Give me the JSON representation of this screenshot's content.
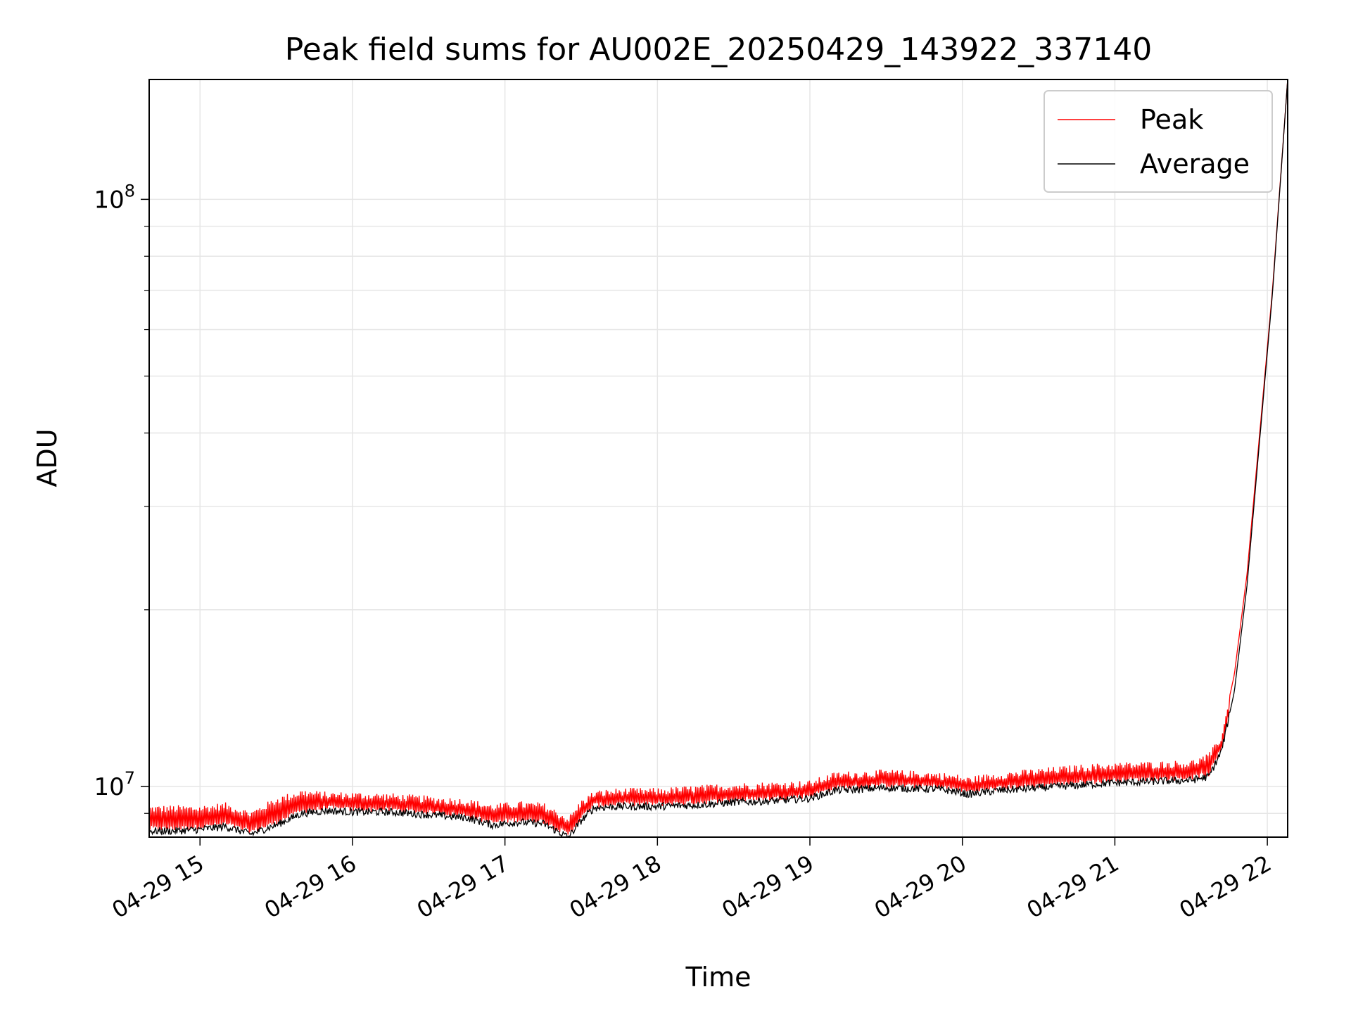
{
  "chart_data": {
    "type": "line",
    "title": "Peak field sums for AU002E_20250429_143922_337140",
    "xlabel": "Time",
    "ylabel": "ADU",
    "x_scale": "time",
    "y_scale": "log",
    "xlim": [
      "2025-04-29 14:40",
      "2025-04-29 22:08"
    ],
    "ylim": [
      8200000,
      160000000
    ],
    "xticks": [
      {
        "t": "2025-04-29 15:00",
        "label": "04-29 15"
      },
      {
        "t": "2025-04-29 16:00",
        "label": "04-29 16"
      },
      {
        "t": "2025-04-29 17:00",
        "label": "04-29 17"
      },
      {
        "t": "2025-04-29 18:00",
        "label": "04-29 18"
      },
      {
        "t": "2025-04-29 19:00",
        "label": "04-29 19"
      },
      {
        "t": "2025-04-29 20:00",
        "label": "04-29 20"
      },
      {
        "t": "2025-04-29 21:00",
        "label": "04-29 21"
      },
      {
        "t": "2025-04-29 22:00",
        "label": "04-29 22"
      }
    ],
    "yticks_major": [
      {
        "value": 10000000,
        "base": "10",
        "exp": "7"
      },
      {
        "value": 100000000,
        "base": "10",
        "exp": "8"
      }
    ],
    "yticks_minor": [
      9000000,
      20000000,
      30000000,
      40000000,
      50000000,
      60000000,
      70000000,
      80000000,
      90000000
    ],
    "grid": true,
    "legend": {
      "position": "top-right"
    },
    "series": [
      {
        "name": "Peak",
        "color": "#ff0000",
        "spiky": true,
        "x": [
          "2025-04-29 14:40",
          "2025-04-29 14:50",
          "2025-04-29 15:00",
          "2025-04-29 15:10",
          "2025-04-29 15:20",
          "2025-04-29 15:30",
          "2025-04-29 15:40",
          "2025-04-29 15:50",
          "2025-04-29 16:00",
          "2025-04-29 16:15",
          "2025-04-29 16:30",
          "2025-04-29 16:45",
          "2025-04-29 16:55",
          "2025-04-29 17:05",
          "2025-04-29 17:15",
          "2025-04-29 17:25",
          "2025-04-29 17:30",
          "2025-04-29 17:35",
          "2025-04-29 17:45",
          "2025-04-29 18:00",
          "2025-04-29 18:15",
          "2025-04-29 18:30",
          "2025-04-29 18:45",
          "2025-04-29 19:00",
          "2025-04-29 19:10",
          "2025-04-29 19:30",
          "2025-04-29 19:50",
          "2025-04-29 19:58",
          "2025-04-29 20:02",
          "2025-04-29 20:15",
          "2025-04-29 20:30",
          "2025-04-29 20:45",
          "2025-04-29 21:00",
          "2025-04-29 21:15",
          "2025-04-29 21:30",
          "2025-04-29 21:37",
          "2025-04-29 21:42",
          "2025-04-29 21:47",
          "2025-04-29 21:52",
          "2025-04-29 21:57",
          "2025-04-29 22:02",
          "2025-04-29 22:08"
        ],
        "values": [
          9300000,
          9300000,
          9300000,
          9400000,
          9100000,
          9600000,
          9900000,
          9800000,
          9800000,
          9750000,
          9650000,
          9550000,
          9350000,
          9450000,
          9400000,
          8900000,
          9500000,
          9850000,
          9950000,
          9950000,
          10050000,
          10150000,
          10200000,
          10250000,
          10600000,
          10700000,
          10600000,
          10500000,
          10400000,
          10600000,
          10750000,
          10900000,
          11000000,
          11050000,
          11100000,
          11400000,
          12300000,
          15500000,
          23000000,
          40000000,
          70000000,
          160000000
        ]
      },
      {
        "name": "Average",
        "color": "#000000",
        "spiky": false,
        "x": [
          "2025-04-29 14:40",
          "2025-04-29 14:50",
          "2025-04-29 15:00",
          "2025-04-29 15:10",
          "2025-04-29 15:20",
          "2025-04-29 15:30",
          "2025-04-29 15:40",
          "2025-04-29 15:50",
          "2025-04-29 16:00",
          "2025-04-29 16:15",
          "2025-04-29 16:30",
          "2025-04-29 16:45",
          "2025-04-29 16:55",
          "2025-04-29 17:05",
          "2025-04-29 17:15",
          "2025-04-29 17:25",
          "2025-04-29 17:30",
          "2025-04-29 17:35",
          "2025-04-29 17:45",
          "2025-04-29 18:00",
          "2025-04-29 18:15",
          "2025-04-29 18:30",
          "2025-04-29 18:45",
          "2025-04-29 19:00",
          "2025-04-29 19:10",
          "2025-04-29 19:30",
          "2025-04-29 19:50",
          "2025-04-29 19:58",
          "2025-04-29 20:02",
          "2025-04-29 20:15",
          "2025-04-29 20:30",
          "2025-04-29 20:45",
          "2025-04-29 21:00",
          "2025-04-29 21:15",
          "2025-04-29 21:30",
          "2025-04-29 21:37",
          "2025-04-29 21:42",
          "2025-04-29 21:47",
          "2025-04-29 21:52",
          "2025-04-29 21:57",
          "2025-04-29 22:02",
          "2025-04-29 22:08"
        ],
        "values": [
          8400000,
          8400000,
          8450000,
          8550000,
          8300000,
          8600000,
          9000000,
          9100000,
          9050000,
          9050000,
          8950000,
          8850000,
          8600000,
          8700000,
          8650000,
          8200000,
          8750000,
          9200000,
          9250000,
          9250000,
          9300000,
          9400000,
          9450000,
          9550000,
          9850000,
          9950000,
          9900000,
          9800000,
          9700000,
          9850000,
          9950000,
          10050000,
          10150000,
          10200000,
          10250000,
          10400000,
          11500000,
          14500000,
          22000000,
          39000000,
          69000000,
          160000000
        ]
      }
    ]
  }
}
